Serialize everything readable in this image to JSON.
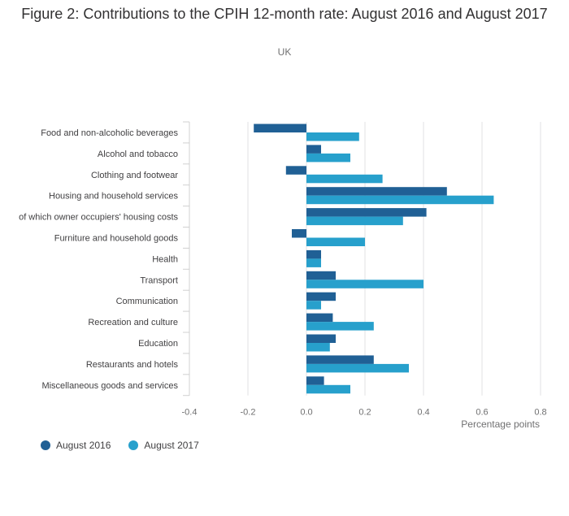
{
  "title": "Figure 2: Contributions to the CPIH 12-month rate: August 2016 and August 2017",
  "subtitle": "UK",
  "chart_data": {
    "type": "bar",
    "orientation": "horizontal",
    "categories": [
      "Food and non-alcoholic beverages",
      "Alcohol and tobacco",
      "Clothing and footwear",
      "Housing and household services",
      "of which owner occupiers' housing costs",
      "Furniture and household goods",
      "Health",
      "Transport",
      "Communication",
      "Recreation and culture",
      "Education",
      "Restaurants and hotels",
      "Miscellaneous goods and services"
    ],
    "series": [
      {
        "name": "August 2016",
        "color": "#206095",
        "values": [
          -0.18,
          0.05,
          -0.07,
          0.48,
          0.41,
          -0.05,
          0.05,
          0.1,
          0.1,
          0.09,
          0.1,
          0.23,
          0.06
        ]
      },
      {
        "name": "August 2017",
        "color": "#27a0cc",
        "values": [
          0.18,
          0.15,
          0.26,
          0.64,
          0.33,
          0.2,
          0.05,
          0.4,
          0.05,
          0.23,
          0.08,
          0.35,
          0.15
        ]
      }
    ],
    "xlabel": "Percentage points",
    "xlim": [
      -0.4,
      0.8
    ],
    "xticks": [
      "-0.4",
      "-0.2",
      "0.0",
      "0.2",
      "0.4",
      "0.6",
      "0.8"
    ],
    "grid": true,
    "legend": "bottom-left"
  }
}
